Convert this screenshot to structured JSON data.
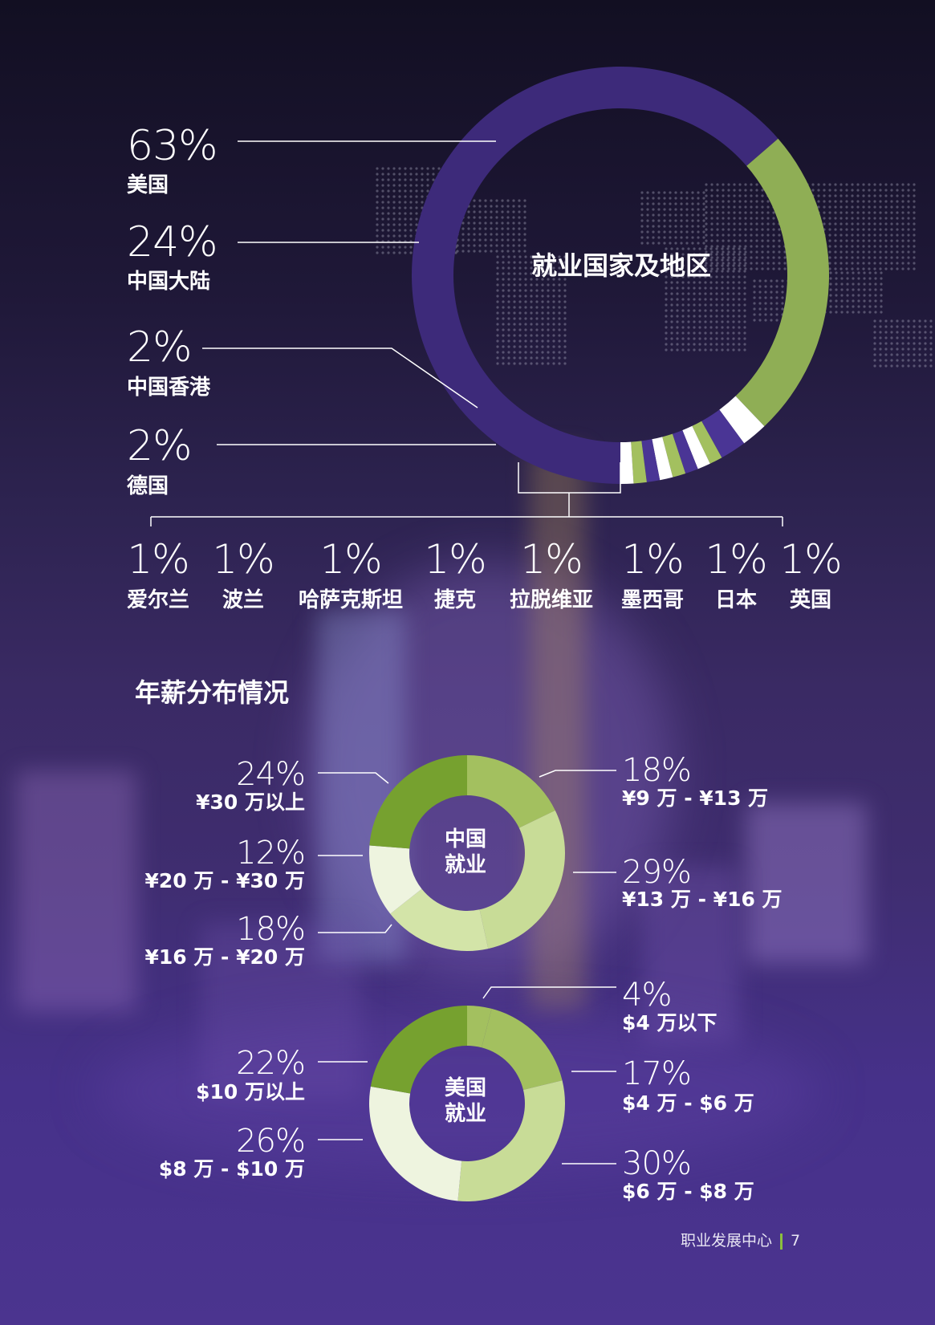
{
  "chart_data": [
    {
      "type": "pie",
      "title": "就业国家及地区",
      "categories": [
        "美国",
        "中国大陆",
        "中国香港",
        "德国",
        "爱尔兰",
        "波兰",
        "哈萨克斯坦",
        "捷克",
        "拉脱维亚",
        "墨西哥",
        "日本",
        "英国"
      ],
      "values": [
        63,
        24,
        2,
        2,
        1,
        1,
        1,
        1,
        1,
        1,
        1,
        1
      ],
      "labels": [
        "63%",
        "24%",
        "2%",
        "2%",
        "1%",
        "1%",
        "1%",
        "1%",
        "1%",
        "1%",
        "1%",
        "1%"
      ]
    },
    {
      "type": "pie",
      "title": "中国\n就业",
      "categories": [
        "¥9 万 - ¥13 万",
        "¥13 万 - ¥16 万",
        "¥16 万 - ¥20 万",
        "¥20 万 - ¥30 万",
        "¥30 万以上"
      ],
      "values": [
        18,
        29,
        18,
        12,
        24
      ],
      "labels": [
        "18%",
        "29%",
        "18%",
        "12%",
        "24%"
      ]
    },
    {
      "type": "pie",
      "title": "美国\n就业",
      "categories": [
        "$4 万以下",
        "$4 万 - $6 万",
        "$6 万 - $8 万",
        "$8 万 - $10 万",
        "$10 万以上"
      ],
      "values": [
        4,
        17,
        30,
        26,
        22
      ],
      "labels": [
        "4%",
        "17%",
        "30%",
        "26%",
        "22%"
      ]
    }
  ],
  "header": {
    "center_title": "就业国家及地区",
    "salary_title": "年薪分布情况"
  },
  "china_center": [
    "中国",
    "就业"
  ],
  "us_center": [
    "美国",
    "就业"
  ],
  "footer": {
    "text": "职业发展中心",
    "page": "7"
  },
  "colors": {
    "purple": "#3d2a7a",
    "purple_light": "#4a3595",
    "green": "#8fae55",
    "green_dark": "#76a12f",
    "green_mid": "#a3c05f",
    "green_light": "#c8dc97",
    "green_pale": "#eef4df",
    "white": "#ffffff"
  }
}
